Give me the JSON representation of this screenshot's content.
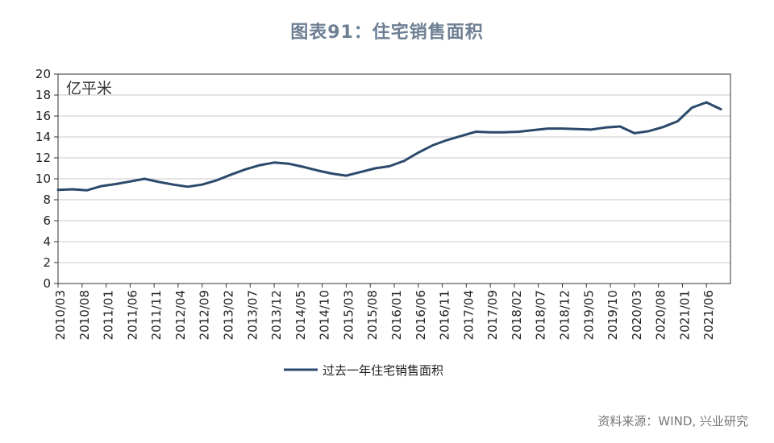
{
  "title": "图表91：住宅销售面积",
  "source": "资料来源：WIND, 兴业研究",
  "chart_data": {
    "type": "line",
    "unit_label": "亿平米",
    "ylim": [
      0,
      20
    ],
    "yticks": [
      0,
      2,
      4,
      6,
      8,
      10,
      12,
      14,
      16,
      18,
      20
    ],
    "grid": true,
    "legend_position": "bottom-center",
    "x_ticks": [
      "2010/03",
      "2010/08",
      "2011/01",
      "2011/06",
      "2011/11",
      "2012/04",
      "2012/09",
      "2013/02",
      "2013/07",
      "2013/12",
      "2014/05",
      "2014/10",
      "2015/03",
      "2015/08",
      "2016/01",
      "2016/06",
      "2016/11",
      "2017/04",
      "2017/09",
      "2018/02",
      "2018/07",
      "2018/12",
      "2019/05",
      "2019/10",
      "2020/03",
      "2020/08",
      "2021/01",
      "2021/06"
    ],
    "series": [
      {
        "name": "过去一年住宅销售面积",
        "color": "#2b4a6b",
        "points": [
          [
            "2010/03",
            8.95
          ],
          [
            "2010/06",
            9.0
          ],
          [
            "2010/09",
            8.9
          ],
          [
            "2010/12",
            9.3
          ],
          [
            "2011/03",
            9.5
          ],
          [
            "2011/06",
            9.75
          ],
          [
            "2011/09",
            10.0
          ],
          [
            "2011/12",
            9.7
          ],
          [
            "2012/03",
            9.45
          ],
          [
            "2012/06",
            9.25
          ],
          [
            "2012/09",
            9.45
          ],
          [
            "2012/12",
            9.85
          ],
          [
            "2013/03",
            10.4
          ],
          [
            "2013/06",
            10.9
          ],
          [
            "2013/09",
            11.3
          ],
          [
            "2013/12",
            11.55
          ],
          [
            "2014/03",
            11.45
          ],
          [
            "2014/06",
            11.15
          ],
          [
            "2014/09",
            10.8
          ],
          [
            "2014/12",
            10.5
          ],
          [
            "2015/03",
            10.3
          ],
          [
            "2015/06",
            10.65
          ],
          [
            "2015/09",
            11.0
          ],
          [
            "2015/12",
            11.2
          ],
          [
            "2016/03",
            11.7
          ],
          [
            "2016/06",
            12.5
          ],
          [
            "2016/09",
            13.2
          ],
          [
            "2016/12",
            13.7
          ],
          [
            "2017/03",
            14.1
          ],
          [
            "2017/06",
            14.5
          ],
          [
            "2017/09",
            14.45
          ],
          [
            "2017/12",
            14.45
          ],
          [
            "2018/03",
            14.5
          ],
          [
            "2018/06",
            14.65
          ],
          [
            "2018/09",
            14.8
          ],
          [
            "2018/12",
            14.8
          ],
          [
            "2019/03",
            14.75
          ],
          [
            "2019/06",
            14.7
          ],
          [
            "2019/09",
            14.9
          ],
          [
            "2019/12",
            15.0
          ],
          [
            "2020/03",
            14.35
          ],
          [
            "2020/06",
            14.55
          ],
          [
            "2020/09",
            14.95
          ],
          [
            "2020/12",
            15.5
          ],
          [
            "2021/03",
            16.8
          ],
          [
            "2021/06",
            17.3
          ],
          [
            "2021/09",
            16.65
          ]
        ]
      }
    ]
  }
}
